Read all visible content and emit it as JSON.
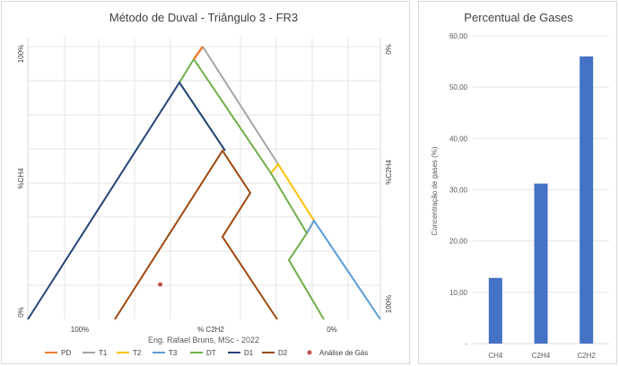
{
  "duval": {
    "title": "Método de Duval - Triângulo 3 - FR3",
    "left_axis": {
      "top": "100%",
      "mid": "%CH4",
      "bottom": "0%"
    },
    "right_axis": {
      "top": "0%",
      "mid": "%C2H4",
      "bottom": "100%"
    },
    "bottom_axis": {
      "left": "100%",
      "mid": "% C2H2",
      "right": "0%"
    },
    "credit": "Eng. Rafael Bruns, MSc - 2022",
    "legend": [
      {
        "label": "PD",
        "color": "#ed7d31"
      },
      {
        "label": "T1",
        "color": "#a5a5a5"
      },
      {
        "label": "T2",
        "color": "#ffc000"
      },
      {
        "label": "T3",
        "color": "#5b9bd5"
      },
      {
        "label": "DT",
        "color": "#70ad47"
      },
      {
        "label": "D1",
        "color": "#264478"
      },
      {
        "label": "D2",
        "color": "#9e480e"
      },
      {
        "label": "Análise de Gás",
        "color": "#c0504d"
      }
    ],
    "analysis_point": {
      "ch4": 12.8,
      "c2h4": 31.2,
      "c2h2": 56.0
    }
  },
  "bars": {
    "title": "Percentual de Gases",
    "ylabel": "Concentração de gases (%)"
  },
  "chart_data": {
    "type": "bar",
    "title": "Percentual de Gases",
    "xlabel": "",
    "ylabel": "Concentração de gases (%)",
    "categories": [
      "CH4",
      "C2H4",
      "C2H2"
    ],
    "values": [
      12.8,
      31.2,
      56.0
    ],
    "ylim": [
      0,
      60
    ],
    "yticks": [
      "-",
      "10,00",
      "20,00",
      "30,00",
      "40,00",
      "50,00",
      "60,00"
    ],
    "grid": true,
    "bar_color": "#4472c4"
  }
}
